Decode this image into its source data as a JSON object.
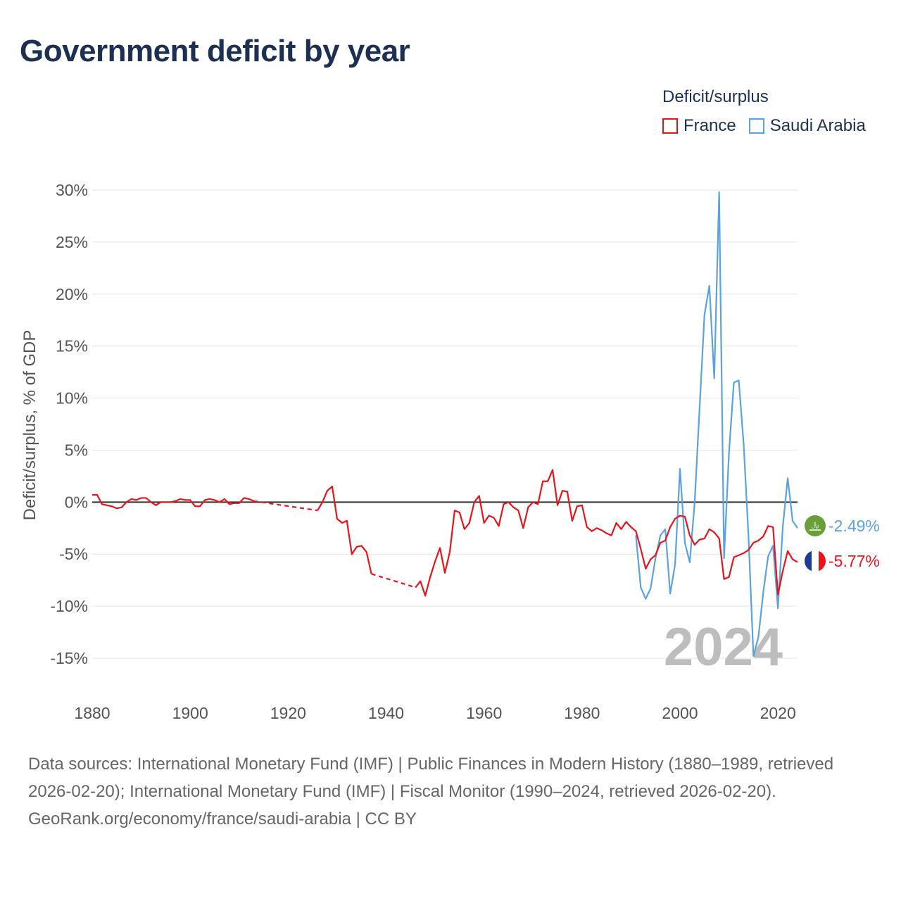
{
  "title": "Government deficit by year",
  "legend": {
    "title": "Deficit/surplus",
    "items": [
      {
        "label": "France",
        "color": "#e8141b"
      },
      {
        "label": "Saudi Arabia",
        "color": "#5ba3e0"
      }
    ]
  },
  "footer": {
    "sources": "Data sources: International Monetary Fund (IMF) | Public Finances in Modern History (1880–1989, retrieved 2026-02-20); International Monetary Fund (IMF) | Fiscal Monitor (1990–2024, retrieved 2026-02-20).",
    "credit": "GeoRank.org/economy/france/saudi-arabia | CC BY"
  },
  "chart_data": {
    "type": "line",
    "title": "Government deficit by year",
    "xlabel": "",
    "ylabel": "Deficit/surplus, % of GDP",
    "xlim": [
      1880,
      2024
    ],
    "ylim": [
      -15,
      30
    ],
    "x_ticks": [
      1880,
      1900,
      1920,
      1940,
      1960,
      1980,
      2000,
      2020
    ],
    "y_ticks": [
      30,
      25,
      20,
      15,
      10,
      5,
      0,
      -5,
      -10,
      -15
    ],
    "y_tick_labels": [
      "30%",
      "25%",
      "20%",
      "15%",
      "10%",
      "5%",
      "0%",
      "-5%",
      "-10%",
      "-15%"
    ],
    "year_label": "2024",
    "end_labels": [
      {
        "series": "Saudi Arabia",
        "text": "-2.49%",
        "flag": "saudi-arabia-flag-icon"
      },
      {
        "series": "France",
        "text": "-5.77%",
        "flag": "france-flag-icon"
      }
    ],
    "gaps": [
      [
        1913,
        1926
      ],
      [
        1937,
        1946
      ]
    ],
    "series": [
      {
        "name": "France",
        "color": "#e8141b",
        "points": [
          [
            1880,
            0.7
          ],
          [
            1881,
            0.7
          ],
          [
            1882,
            -0.2
          ],
          [
            1883,
            -0.3
          ],
          [
            1884,
            -0.4
          ],
          [
            1885,
            -0.6
          ],
          [
            1886,
            -0.5
          ],
          [
            1887,
            0.0
          ],
          [
            1888,
            0.3
          ],
          [
            1889,
            0.2
          ],
          [
            1890,
            0.4
          ],
          [
            1891,
            0.4
          ],
          [
            1892,
            0.0
          ],
          [
            1893,
            -0.3
          ],
          [
            1894,
            0.0
          ],
          [
            1895,
            0.0
          ],
          [
            1896,
            0.0
          ],
          [
            1897,
            0.1
          ],
          [
            1898,
            0.3
          ],
          [
            1899,
            0.2
          ],
          [
            1900,
            0.2
          ],
          [
            1901,
            -0.4
          ],
          [
            1902,
            -0.4
          ],
          [
            1903,
            0.2
          ],
          [
            1904,
            0.3
          ],
          [
            1905,
            0.2
          ],
          [
            1906,
            0.0
          ],
          [
            1907,
            0.3
          ],
          [
            1908,
            -0.2
          ],
          [
            1909,
            -0.1
          ],
          [
            1910,
            -0.1
          ],
          [
            1911,
            0.4
          ],
          [
            1912,
            0.3
          ],
          [
            1913,
            0.1
          ],
          [
            1926,
            -0.8
          ],
          [
            1927,
            0.0
          ],
          [
            1928,
            1.1
          ],
          [
            1929,
            1.5
          ],
          [
            1930,
            -1.6
          ],
          [
            1931,
            -2.0
          ],
          [
            1932,
            -1.8
          ],
          [
            1933,
            -5.0
          ],
          [
            1934,
            -4.3
          ],
          [
            1935,
            -4.2
          ],
          [
            1936,
            -4.8
          ],
          [
            1937,
            -6.9
          ],
          [
            1946,
            -8.2
          ],
          [
            1947,
            -7.6
          ],
          [
            1948,
            -9.0
          ],
          [
            1949,
            -7.2
          ],
          [
            1950,
            -5.7
          ],
          [
            1951,
            -4.4
          ],
          [
            1952,
            -6.8
          ],
          [
            1953,
            -4.8
          ],
          [
            1954,
            -0.8
          ],
          [
            1955,
            -1.0
          ],
          [
            1956,
            -2.6
          ],
          [
            1957,
            -2.0
          ],
          [
            1958,
            0.0
          ],
          [
            1959,
            0.6
          ],
          [
            1960,
            -2.0
          ],
          [
            1961,
            -1.3
          ],
          [
            1962,
            -1.5
          ],
          [
            1963,
            -2.3
          ],
          [
            1964,
            -0.2
          ],
          [
            1965,
            0.0
          ],
          [
            1966,
            -0.5
          ],
          [
            1967,
            -0.8
          ],
          [
            1968,
            -2.5
          ],
          [
            1969,
            -0.5
          ],
          [
            1970,
            0.0
          ],
          [
            1971,
            -0.2
          ],
          [
            1972,
            2.0
          ],
          [
            1973,
            2.0
          ],
          [
            1974,
            3.1
          ],
          [
            1975,
            -0.3
          ],
          [
            1976,
            1.1
          ],
          [
            1977,
            1.0
          ],
          [
            1978,
            -1.8
          ],
          [
            1979,
            -0.4
          ],
          [
            1980,
            -0.3
          ],
          [
            1981,
            -2.4
          ],
          [
            1982,
            -2.8
          ],
          [
            1983,
            -2.5
          ],
          [
            1984,
            -2.7
          ],
          [
            1985,
            -3.0
          ],
          [
            1986,
            -3.2
          ],
          [
            1987,
            -2.0
          ],
          [
            1988,
            -2.6
          ],
          [
            1989,
            -1.9
          ],
          [
            1990,
            -2.4
          ],
          [
            1991,
            -2.8
          ],
          [
            1992,
            -4.5
          ],
          [
            1993,
            -6.4
          ],
          [
            1994,
            -5.5
          ],
          [
            1995,
            -5.1
          ],
          [
            1996,
            -3.9
          ],
          [
            1997,
            -3.7
          ],
          [
            1998,
            -2.4
          ],
          [
            1999,
            -1.6
          ],
          [
            2000,
            -1.3
          ],
          [
            2001,
            -1.4
          ],
          [
            2002,
            -3.2
          ],
          [
            2003,
            -4.1
          ],
          [
            2004,
            -3.6
          ],
          [
            2005,
            -3.5
          ],
          [
            2006,
            -2.6
          ],
          [
            2007,
            -2.9
          ],
          [
            2008,
            -3.5
          ],
          [
            2009,
            -7.4
          ],
          [
            2010,
            -7.2
          ],
          [
            2011,
            -5.3
          ],
          [
            2012,
            -5.1
          ],
          [
            2013,
            -4.9
          ],
          [
            2014,
            -4.6
          ],
          [
            2015,
            -3.9
          ],
          [
            2016,
            -3.7
          ],
          [
            2017,
            -3.3
          ],
          [
            2018,
            -2.3
          ],
          [
            2019,
            -2.4
          ],
          [
            2020,
            -8.9
          ],
          [
            2021,
            -6.6
          ],
          [
            2022,
            -4.7
          ],
          [
            2023,
            -5.5
          ],
          [
            2024,
            -5.77
          ]
        ]
      },
      {
        "name": "Saudi Arabia",
        "color": "#5ba3e0",
        "points": [
          [
            1991,
            -3.2
          ],
          [
            1992,
            -8.2
          ],
          [
            1993,
            -9.3
          ],
          [
            1994,
            -8.3
          ],
          [
            1995,
            -5.4
          ],
          [
            1996,
            -3.2
          ],
          [
            1997,
            -2.6
          ],
          [
            1998,
            -8.8
          ],
          [
            1999,
            -6.0
          ],
          [
            2000,
            3.2
          ],
          [
            2001,
            -3.9
          ],
          [
            2002,
            -5.8
          ],
          [
            2003,
            0.0
          ],
          [
            2004,
            9.0
          ],
          [
            2005,
            18.0
          ],
          [
            2006,
            20.8
          ],
          [
            2007,
            11.9
          ],
          [
            2008,
            29.8
          ],
          [
            2009,
            -5.4
          ],
          [
            2010,
            4.7
          ],
          [
            2011,
            11.5
          ],
          [
            2012,
            11.7
          ],
          [
            2013,
            5.6
          ],
          [
            2014,
            -3.4
          ],
          [
            2015,
            -14.8
          ],
          [
            2016,
            -13.0
          ],
          [
            2017,
            -8.7
          ],
          [
            2018,
            -5.2
          ],
          [
            2019,
            -4.2
          ],
          [
            2020,
            -10.2
          ],
          [
            2021,
            -2.3
          ],
          [
            2022,
            2.3
          ],
          [
            2023,
            -1.8
          ],
          [
            2024,
            -2.49
          ]
        ]
      }
    ]
  }
}
